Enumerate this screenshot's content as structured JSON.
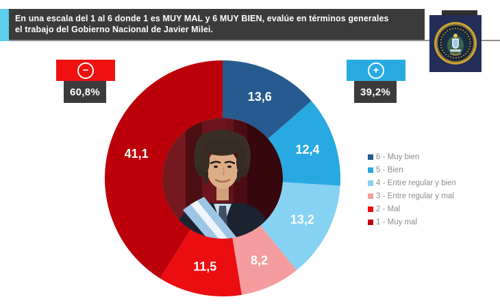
{
  "banner": {
    "line1": "En una escala del 1 al 6 donde 1 es MUY MAL y 6 MUY BIEN, evalúe en términos generales",
    "line2": "el trabajo del Gobierno Nacional de Javier Milei."
  },
  "badges": {
    "negative": {
      "symbol": "−",
      "value": "60,8%",
      "color": "#f01111"
    },
    "positive": {
      "symbol": "+",
      "value": "39,2%",
      "color": "#29abe2"
    }
  },
  "chart_data": {
    "type": "pie",
    "variant": "donut",
    "start_angle_deg": 0,
    "direction": "clockwise",
    "total": 100,
    "segments": [
      {
        "value": 13.6,
        "label": "13,6",
        "legend_label": "6 - Muy bien",
        "color": "#275a8e"
      },
      {
        "value": 12.4,
        "label": "12,4",
        "legend_label": "5 - Bien",
        "color": "#29a9e2"
      },
      {
        "value": 13.2,
        "label": "13,2",
        "legend_label": "4 - Entre regular y bien",
        "color": "#85d2f2"
      },
      {
        "value": 8.2,
        "label": "8,2",
        "legend_label": "3 - Entre regular y mal",
        "color": "#f59c9e"
      },
      {
        "value": 11.5,
        "label": "11,5",
        "legend_label": "2 - Mal",
        "color": "#ec0d10"
      },
      {
        "value": 41.1,
        "label": "41,1",
        "legend_label": "1 - Muy mal",
        "color": "#bc000a"
      }
    ],
    "legend_position": "right",
    "center_image": "photo of Javier Milei with presidential sash",
    "negative_total": "60,8%",
    "positive_total": "39,2%"
  },
  "logo": {
    "alt": "institutional seal"
  }
}
